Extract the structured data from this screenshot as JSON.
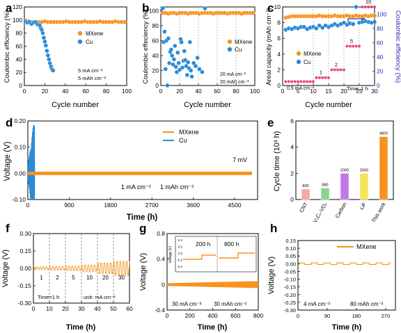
{
  "colors": {
    "mxene": "#F7931E",
    "cu": "#2A8BD6",
    "cnt": "#F7A8A0",
    "vco": "#8CD48A",
    "carbon": "#C178E8",
    "lif": "#F4E45A",
    "thiswork": "#F7931E",
    "right_axis": "#2626B8",
    "pink": "#E8478C"
  },
  "panels": {
    "a": {
      "label": "a",
      "xlabel": "Cycle number",
      "ylabel": "Coulombic efficiency (%)",
      "legend": [
        "MXene",
        "Cu"
      ],
      "note1": "5 mA cm⁻²",
      "note2": "5 mAh cm⁻²"
    },
    "b": {
      "label": "b",
      "xlabel": "Cycle number",
      "ylabel": "Coulombic effeciency (%)",
      "legend": [
        "MXene",
        "Cu"
      ],
      "note1": "20 mA cm⁻²",
      "note2": "20 mAh cm⁻²"
    },
    "c": {
      "label": "c",
      "xlabel": "Cycle number",
      "ylabel": "Areal capacity (mAh cm⁻²)",
      "ylabel_right": "Coulombic efficiency (%)",
      "legend": [
        "MXene",
        "Cu"
      ],
      "note_time": "Time: 1 h",
      "note_start": "0.5 mA cm⁻²",
      "step_labels": [
        "1",
        "2",
        "5",
        "10"
      ]
    },
    "d": {
      "label": "d",
      "xlabel": "Time (h)",
      "ylabel": "Voltage (V)",
      "legend": [
        "MXene",
        "Cu"
      ],
      "note_mv": "7 mV",
      "note1": "1 mA cm⁻²",
      "note2": "1 mAh cm⁻²"
    },
    "e": {
      "label": "e",
      "ylabel": "Cycle time (10³ h)"
    },
    "f": {
      "label": "f",
      "xlabel": "Time (h)",
      "ylabel": "Voltage (V)",
      "note_time": "Time=1 h",
      "note_unit": "unit: mA cm⁻²"
    },
    "g": {
      "label": "g",
      "xlabel": "Time (h)",
      "ylabel": "Voltage (V)",
      "inset_left": "200 h",
      "inset_right": "800 h",
      "inset_ylabel": "Voltage (V)",
      "note1": "30 mA cm⁻²",
      "note2": "30 mAh cm⁻²"
    },
    "h": {
      "label": "h",
      "xlabel": "Time (h)",
      "ylabel": "Voltage (V)",
      "legend": [
        "MXene"
      ],
      "note1": "4 mA cm⁻²",
      "note2": "80 mAh cm⁻²"
    }
  },
  "chart_data": [
    {
      "panel": "a",
      "type": "scatter",
      "xlim": [
        0,
        100
      ],
      "ylim": [
        0,
        120
      ],
      "xticks": [
        0,
        20,
        40,
        60,
        80,
        100
      ],
      "yticks": [
        0,
        20,
        40,
        60,
        80,
        100,
        120
      ],
      "series": [
        {
          "name": "MXene",
          "x": [
            2,
            5,
            8,
            11,
            14,
            17,
            20,
            23,
            26,
            29,
            32,
            35,
            38,
            41,
            44,
            47,
            50,
            53,
            56,
            59,
            62,
            65,
            68,
            71,
            74,
            77,
            80,
            83,
            86,
            89,
            92,
            95,
            98
          ],
          "y": [
            99,
            98,
            97,
            97,
            97,
            97,
            98,
            97,
            97,
            97,
            97,
            97,
            97,
            98,
            97,
            97,
            97,
            97,
            97,
            98,
            97,
            97,
            97,
            97,
            98,
            97,
            97,
            97,
            97,
            98,
            97,
            97,
            97
          ]
        },
        {
          "name": "Cu",
          "x": [
            1,
            3,
            5,
            7,
            9,
            11,
            13,
            15,
            16,
            17,
            18,
            19,
            20,
            21,
            22,
            23,
            24,
            25,
            26,
            27,
            28
          ],
          "y": [
            98,
            96,
            97,
            94,
            96,
            97,
            93,
            92,
            88,
            85,
            80,
            73,
            67,
            61,
            53,
            46,
            40,
            34,
            29,
            25,
            23
          ]
        }
      ]
    },
    {
      "panel": "b",
      "type": "scatter",
      "xlim": [
        0,
        100
      ],
      "ylim": [
        0,
        105
      ],
      "xticks": [
        0,
        20,
        40,
        60,
        80,
        100
      ],
      "yticks": [
        0,
        20,
        40,
        60,
        80,
        100
      ],
      "series": [
        {
          "name": "MXene",
          "x": [
            2,
            5,
            8,
            11,
            14,
            17,
            20,
            23,
            26,
            29,
            32,
            35,
            38,
            41,
            44,
            47,
            50,
            53,
            56,
            59,
            62,
            65,
            68,
            71,
            74,
            77,
            80,
            83,
            86,
            89,
            92,
            95,
            98
          ],
          "y": [
            97,
            97,
            96,
            97,
            97,
            96,
            97,
            97,
            97,
            96,
            97,
            97,
            97,
            96,
            97,
            97,
            97,
            97,
            96,
            97,
            97,
            97,
            97,
            96,
            97,
            97,
            97,
            97,
            96,
            97,
            97,
            97,
            97
          ]
        },
        {
          "name": "Cu",
          "x": [
            2,
            3,
            4,
            5,
            6,
            7,
            8,
            9,
            10,
            11,
            12,
            13,
            14,
            15,
            16,
            17,
            18,
            19,
            20,
            21,
            22,
            23,
            24,
            25,
            26,
            27,
            28,
            29,
            30,
            31,
            32,
            33,
            35,
            37,
            39,
            41,
            44,
            47
          ],
          "y": [
            103,
            58,
            72,
            22,
            60,
            0,
            63,
            30,
            45,
            48,
            40,
            28,
            35,
            53,
            25,
            18,
            44,
            30,
            21,
            62,
            58,
            24,
            33,
            46,
            34,
            26,
            14,
            31,
            23,
            58,
            20,
            12,
            30,
            26,
            37,
            22,
            18,
            103
          ]
        }
      ]
    },
    {
      "panel": "c",
      "type": "scatter",
      "xlim": [
        0,
        30
      ],
      "ylim": [
        0,
        10
      ],
      "ylim_right": [
        0,
        110
      ],
      "xticks": [
        0,
        5,
        10,
        15,
        20,
        25,
        30
      ],
      "yticks": [
        0,
        2,
        4,
        6,
        8,
        10
      ],
      "yticks_right": [
        0,
        20,
        40,
        60,
        80,
        100
      ],
      "series": [
        {
          "name": "MXene",
          "axis": "right",
          "x": [
            1,
            2,
            3,
            4,
            5,
            6,
            7,
            8,
            9,
            10,
            11,
            12,
            13,
            14,
            15,
            16,
            17,
            18,
            19,
            20,
            21,
            22,
            23,
            24,
            25,
            26,
            27,
            28,
            29,
            30
          ],
          "y": [
            95,
            96,
            97,
            97,
            97,
            97,
            97,
            97,
            97,
            97,
            97,
            98,
            97,
            97,
            97,
            97,
            98,
            97,
            97,
            97,
            98,
            97,
            97,
            98,
            97,
            97,
            98,
            97,
            98,
            98
          ]
        },
        {
          "name": "Cu",
          "axis": "right",
          "x": [
            1,
            2,
            3,
            4,
            5,
            6,
            7,
            8,
            9,
            10,
            11,
            12,
            13,
            14,
            15,
            16,
            17,
            18,
            19,
            20,
            21,
            22,
            23,
            24,
            25,
            26,
            27,
            28,
            29,
            30
          ],
          "y": [
            78,
            80,
            79,
            81,
            80,
            82,
            82,
            79,
            81,
            82,
            80,
            84,
            81,
            84,
            82,
            84,
            86,
            84,
            86,
            88,
            85,
            87,
            86,
            110,
            88,
            89,
            90,
            89,
            88,
            89
          ]
        },
        {
          "name": "Areal capacity",
          "axis": "left",
          "x": [
            1,
            2,
            3,
            4,
            5,
            6,
            7,
            8,
            9,
            10,
            11,
            12,
            13,
            14,
            15,
            16,
            17,
            18,
            19,
            20,
            21,
            22,
            23,
            24,
            25,
            26,
            27,
            28,
            29,
            30
          ],
          "y": [
            0.5,
            0.5,
            0.5,
            0.5,
            0.5,
            0.5,
            0.5,
            0.5,
            0.5,
            0.5,
            1,
            1,
            1,
            1,
            1,
            2,
            2,
            2,
            2,
            2,
            5,
            5,
            5,
            5,
            5,
            10,
            10,
            10,
            10,
            10
          ]
        }
      ]
    },
    {
      "panel": "d",
      "type": "line",
      "xlim": [
        0,
        5000
      ],
      "ylim": [
        -0.1,
        0.2
      ],
      "xticks": [
        0,
        900,
        1800,
        2700,
        3600,
        4500
      ],
      "yticks": [
        -0.1,
        0.0,
        0.1,
        0.2
      ],
      "series": [
        {
          "name": "MXene",
          "value": 0.007
        },
        {
          "name": "Cu"
        }
      ]
    },
    {
      "panel": "e",
      "type": "bar",
      "categories": [
        "CNT",
        "V₂C₇-VO₂",
        "Carbon",
        "LiF",
        "This work"
      ],
      "values": [
        800,
        880,
        2000,
        2000,
        4800
      ],
      "ylim": [
        0,
        6
      ],
      "yticks": [
        0,
        2,
        4,
        6
      ]
    },
    {
      "panel": "f",
      "type": "line",
      "xlim": [
        0,
        60
      ],
      "ylim": [
        -0.3,
        0.3
      ],
      "xticks": [
        0,
        10,
        20,
        30,
        40,
        50,
        60
      ],
      "yticks": [
        -0.3,
        -0.15,
        0.0,
        0.15,
        0.3
      ],
      "step_labels": [
        "1",
        "2",
        "5",
        "10",
        "20",
        "30"
      ]
    },
    {
      "panel": "g",
      "type": "line",
      "xlim": [
        0,
        800
      ],
      "ylim": [
        -0.4,
        0.8
      ],
      "xticks": [
        0,
        200,
        400,
        600,
        800
      ],
      "yticks": [
        -0.4,
        0.0,
        0.4,
        0.8
      ],
      "inset_yticks": [
        "0.4",
        "0.2",
        "0.0",
        "-0.2",
        "-0.4"
      ]
    },
    {
      "panel": "h",
      "type": "line",
      "xlim": [
        0,
        300
      ],
      "ylim": [
        -0.3,
        0.15
      ],
      "xticks": [
        0,
        90,
        180,
        270
      ],
      "yticks": [
        -0.3,
        -0.25,
        -0.2,
        -0.15,
        -0.1,
        -0.05,
        0.0,
        0.05,
        0.1,
        0.15
      ]
    }
  ]
}
